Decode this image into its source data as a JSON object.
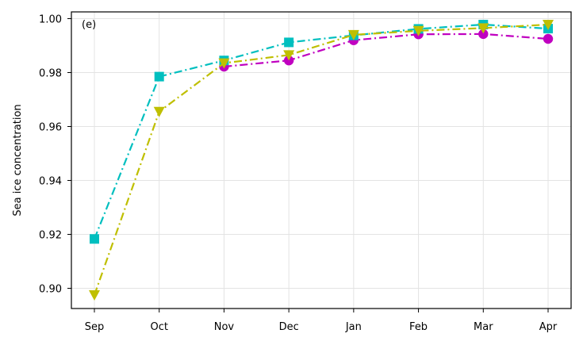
{
  "chart_data": {
    "type": "line",
    "panel_label": "(e)",
    "title": "",
    "xlabel": "",
    "ylabel": "Sea ice concentration",
    "categories": [
      "Sep",
      "Oct",
      "Nov",
      "Dec",
      "Jan",
      "Feb",
      "Mar",
      "Apr"
    ],
    "ylim": [
      0.8925,
      1.0025
    ],
    "yticks": [
      "0.90",
      "0.92",
      "0.94",
      "0.96",
      "0.98",
      "1.00"
    ],
    "ytick_values": [
      0.9,
      0.92,
      0.94,
      0.96,
      0.98,
      1.0
    ],
    "grid": true,
    "legend": "none",
    "series": [
      {
        "color": "#c000c0",
        "marker": "circle",
        "linestyle": "dash-dot",
        "values": [
          null,
          null,
          0.9822,
          0.9845,
          0.992,
          0.9942,
          0.9943,
          0.9925
        ]
      },
      {
        "color": "#00bfbf",
        "marker": "square",
        "linestyle": "dash-dot",
        "values": [
          0.9183,
          0.9785,
          0.9845,
          0.9912,
          0.9938,
          0.9962,
          0.9978,
          0.9963
        ]
      },
      {
        "color": "#bfbf00",
        "marker": "triangle-down",
        "linestyle": "dash-dot",
        "values": [
          0.8975,
          0.9655,
          0.9835,
          0.9865,
          0.994,
          0.9955,
          0.9965,
          0.9978
        ]
      }
    ]
  }
}
